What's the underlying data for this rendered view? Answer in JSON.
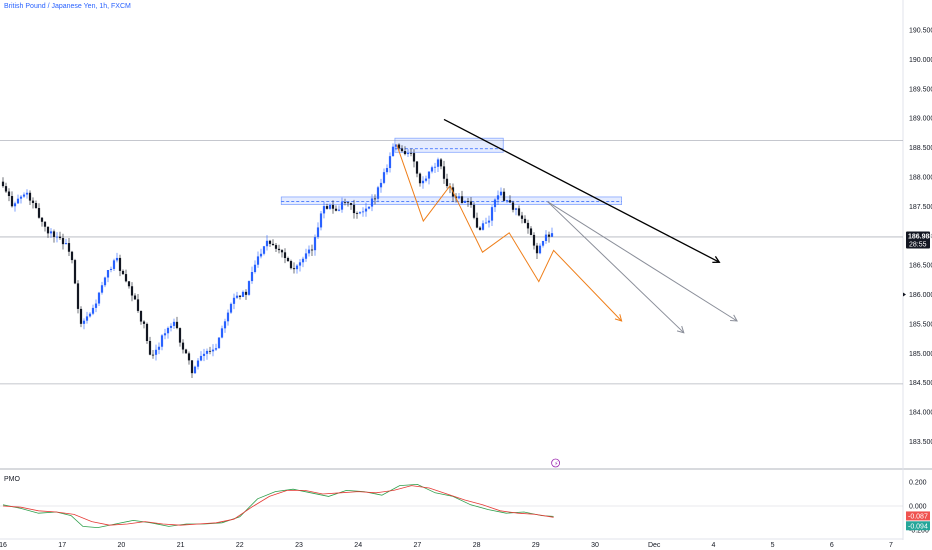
{
  "header": {
    "symbol_title": "British Pound / Japanese Yen, 1h, FXCM"
  },
  "indicator": {
    "label": "PMO"
  },
  "colors": {
    "up": "#2962ff",
    "down": "#131722",
    "grid": "#e0e3eb",
    "orange": "#ef7f1a",
    "gray": "#8a8e99",
    "black": "#000000",
    "zone": "#2962ff",
    "pmo": "#2e9e4b",
    "signal": "#e53935",
    "badge_green": "#26a69a",
    "badge_red": "#ef5350"
  },
  "chart_data": {
    "type": "candlestick",
    "title": "British Pound / Japanese Yen, 1h, FXCM",
    "y_ticks": [
      "190.500",
      "190.000",
      "189.500",
      "189.000",
      "188.500",
      "188.000",
      "187.500",
      "187.000",
      "186.500",
      "186.000",
      "185.500",
      "185.000",
      "184.500",
      "184.000",
      "183.500"
    ],
    "ylim": [
      183.3,
      190.9
    ],
    "x_ticks": [
      "16",
      "17",
      "20",
      "21",
      "22",
      "23",
      "24",
      "27",
      "28",
      "29",
      "30",
      "Dec",
      "4",
      "5",
      "6",
      "7"
    ],
    "current_price": {
      "price": "186.988",
      "countdown": "28:55"
    },
    "horizontal_levels": [
      188.62,
      186.98,
      184.48
    ],
    "zones": [
      {
        "from_day": 6.62,
        "to_day": 8.45,
        "lo": 188.42,
        "hi": 188.66,
        "mid": 188.48
      },
      {
        "from_day": 4.7,
        "to_day": 10.45,
        "lo": 187.53,
        "hi": 187.66,
        "mid": 187.58
      }
    ],
    "series": [
      {
        "name": "GBPJPY 1h",
        "path_points": [
          [
            0,
            187.92
          ],
          [
            0.2,
            187.55
          ],
          [
            0.45,
            187.72
          ],
          [
            0.65,
            187.35
          ],
          [
            0.8,
            187.08
          ],
          [
            1.0,
            186.98
          ],
          [
            1.2,
            186.72
          ],
          [
            1.35,
            185.45
          ],
          [
            1.55,
            185.7
          ],
          [
            1.75,
            186.2
          ],
          [
            1.95,
            186.65
          ],
          [
            2.1,
            186.25
          ],
          [
            2.25,
            185.95
          ],
          [
            2.45,
            185.4
          ],
          [
            2.55,
            184.85
          ],
          [
            2.75,
            185.32
          ],
          [
            2.95,
            185.5
          ],
          [
            3.1,
            185.05
          ],
          [
            3.25,
            184.7
          ],
          [
            3.45,
            185.0
          ],
          [
            3.65,
            185.12
          ],
          [
            3.8,
            185.6
          ],
          [
            3.95,
            186.0
          ],
          [
            4.15,
            186.0
          ],
          [
            4.3,
            186.5
          ],
          [
            4.5,
            186.95
          ],
          [
            4.75,
            186.75
          ],
          [
            4.95,
            186.45
          ],
          [
            5.1,
            186.55
          ],
          [
            5.3,
            186.82
          ],
          [
            5.45,
            187.55
          ],
          [
            5.65,
            187.45
          ],
          [
            5.85,
            187.55
          ],
          [
            6.05,
            187.35
          ],
          [
            6.2,
            187.42
          ],
          [
            6.35,
            187.72
          ],
          [
            6.5,
            188.1
          ],
          [
            6.65,
            188.55
          ],
          [
            6.8,
            188.45
          ],
          [
            6.95,
            188.38
          ],
          [
            7.1,
            187.85
          ],
          [
            7.25,
            188.05
          ],
          [
            7.4,
            188.25
          ],
          [
            7.5,
            188.0
          ],
          [
            7.65,
            187.7
          ],
          [
            7.8,
            187.6
          ],
          [
            7.95,
            187.5
          ],
          [
            8.05,
            187.12
          ],
          [
            8.25,
            187.25
          ],
          [
            8.4,
            187.75
          ],
          [
            8.55,
            187.62
          ],
          [
            8.7,
            187.45
          ],
          [
            8.8,
            187.28
          ],
          [
            8.95,
            187.05
          ],
          [
            9.05,
            186.72
          ],
          [
            9.2,
            186.95
          ],
          [
            9.3,
            187.05
          ]
        ]
      }
    ],
    "projections": [
      {
        "color": "orange",
        "points": [
          [
            6.65,
            188.55
          ],
          [
            7.1,
            187.25
          ],
          [
            7.55,
            187.85
          ],
          [
            8.1,
            186.72
          ],
          [
            8.55,
            187.05
          ],
          [
            9.05,
            186.22
          ],
          [
            9.3,
            186.75
          ],
          [
            10.45,
            185.55
          ]
        ]
      },
      {
        "color": "gray",
        "points": [
          [
            9.2,
            187.58
          ],
          [
            11.5,
            185.35
          ]
        ]
      },
      {
        "color": "gray",
        "points": [
          [
            9.2,
            187.58
          ],
          [
            12.4,
            185.55
          ]
        ]
      },
      {
        "color": "black",
        "points": [
          [
            7.45,
            188.98
          ],
          [
            12.1,
            186.55
          ]
        ]
      }
    ],
    "pmo": {
      "yticks": [
        "0.200",
        "0.000",
        "-0.200"
      ],
      "ylim": [
        -0.26,
        0.24
      ],
      "pmo_values": [
        [
          0,
          0.01
        ],
        [
          0.3,
          -0.02
        ],
        [
          0.6,
          -0.06
        ],
        [
          0.9,
          -0.05
        ],
        [
          1.15,
          -0.08
        ],
        [
          1.35,
          -0.17
        ],
        [
          1.6,
          -0.18
        ],
        [
          1.9,
          -0.15
        ],
        [
          2.2,
          -0.12
        ],
        [
          2.5,
          -0.14
        ],
        [
          2.8,
          -0.17
        ],
        [
          3.1,
          -0.15
        ],
        [
          3.4,
          -0.15
        ],
        [
          3.7,
          -0.14
        ],
        [
          4.0,
          -0.09
        ],
        [
          4.3,
          0.06
        ],
        [
          4.6,
          0.12
        ],
        [
          4.9,
          0.14
        ],
        [
          5.2,
          0.11
        ],
        [
          5.5,
          0.08
        ],
        [
          5.8,
          0.13
        ],
        [
          6.1,
          0.12
        ],
        [
          6.4,
          0.09
        ],
        [
          6.7,
          0.17
        ],
        [
          7.0,
          0.18
        ],
        [
          7.3,
          0.11
        ],
        [
          7.6,
          0.08
        ],
        [
          7.9,
          0.01
        ],
        [
          8.2,
          -0.03
        ],
        [
          8.5,
          -0.06
        ],
        [
          8.8,
          -0.05
        ],
        [
          9.1,
          -0.08
        ],
        [
          9.3,
          -0.087
        ]
      ],
      "signal_values": [
        [
          0,
          0.0
        ],
        [
          0.3,
          -0.01
        ],
        [
          0.6,
          -0.04
        ],
        [
          0.9,
          -0.05
        ],
        [
          1.2,
          -0.07
        ],
        [
          1.5,
          -0.13
        ],
        [
          1.8,
          -0.16
        ],
        [
          2.1,
          -0.15
        ],
        [
          2.4,
          -0.13
        ],
        [
          2.7,
          -0.15
        ],
        [
          3.0,
          -0.16
        ],
        [
          3.3,
          -0.15
        ],
        [
          3.6,
          -0.14
        ],
        [
          3.9,
          -0.11
        ],
        [
          4.2,
          -0.01
        ],
        [
          4.5,
          0.08
        ],
        [
          4.8,
          0.13
        ],
        [
          5.1,
          0.13
        ],
        [
          5.4,
          0.1
        ],
        [
          5.7,
          0.11
        ],
        [
          6.0,
          0.12
        ],
        [
          6.3,
          0.11
        ],
        [
          6.6,
          0.13
        ],
        [
          6.9,
          0.17
        ],
        [
          7.2,
          0.15
        ],
        [
          7.5,
          0.1
        ],
        [
          7.8,
          0.05
        ],
        [
          8.1,
          0.01
        ],
        [
          8.4,
          -0.04
        ],
        [
          8.7,
          -0.06
        ],
        [
          9.0,
          -0.07
        ],
        [
          9.3,
          -0.094
        ]
      ],
      "last_pmo": "-0.087",
      "last_signal": "-0.094"
    }
  }
}
